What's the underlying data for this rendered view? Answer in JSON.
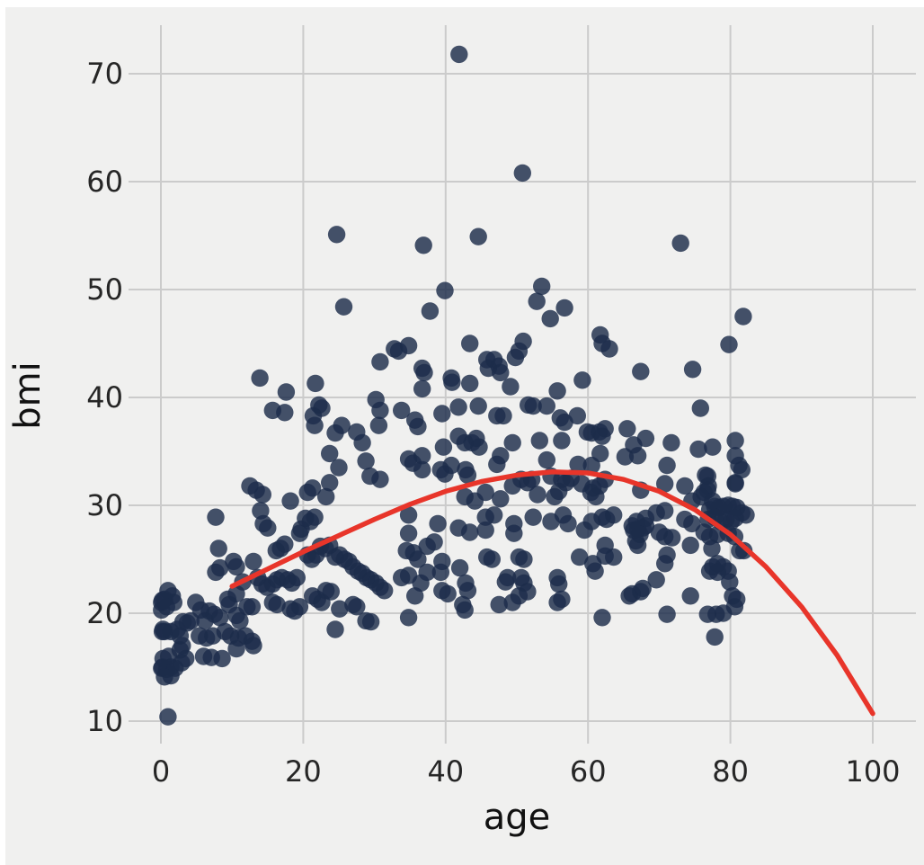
{
  "figure": {
    "background": "#ffffff",
    "panel_background": "#f0f0ef"
  },
  "chart_data": {
    "type": "scatter",
    "title": "",
    "xlabel": "age",
    "ylabel": "bmi",
    "x_ticks": [
      0,
      20,
      40,
      60,
      80,
      100
    ],
    "y_ticks": [
      10,
      20,
      30,
      40,
      50,
      60,
      70
    ],
    "xlim": [
      -4.5,
      106
    ],
    "ylim": [
      7.9,
      74.5
    ],
    "grid": true,
    "legend": "none",
    "grid_color": "#cbcbcb",
    "tick_color": "#262626",
    "label_color": "#111111",
    "marker": {
      "color": "#1c2c4a",
      "opacity": 0.82,
      "radius": 9.7
    },
    "trend": {
      "type": "polynomial-fit-line",
      "color": "#e8352a",
      "width": 5.5,
      "points": [
        [
          10,
          22.5
        ],
        [
          15,
          24.1
        ],
        [
          20,
          25.7
        ],
        [
          25,
          27.2
        ],
        [
          30,
          28.7
        ],
        [
          35,
          30.1
        ],
        [
          40,
          31.3
        ],
        [
          45,
          32.2
        ],
        [
          50,
          32.8
        ],
        [
          55,
          33.1
        ],
        [
          60,
          33.0
        ],
        [
          65,
          32.4
        ],
        [
          70,
          31.3
        ],
        [
          75,
          29.6
        ],
        [
          80,
          27.3
        ],
        [
          85,
          24.3
        ],
        [
          90,
          20.6
        ],
        [
          95,
          16.1
        ],
        [
          100,
          10.7
        ]
      ]
    },
    "points": [
      [
        1.0,
        22.1
      ],
      [
        1.6,
        21.6
      ],
      [
        0.5,
        21.3
      ],
      [
        0.1,
        21.0
      ],
      [
        1.8,
        21.0
      ],
      [
        0.8,
        20.6
      ],
      [
        0.1,
        20.3
      ],
      [
        0.2,
        21.2
      ],
      [
        0.3,
        18.5
      ],
      [
        0.2,
        18.3
      ],
      [
        0.5,
        18.3
      ],
      [
        1.4,
        18.3
      ],
      [
        2.3,
        18.5
      ],
      [
        2.7,
        17.9
      ],
      [
        0.2,
        15.0
      ],
      [
        0.1,
        14.9
      ],
      [
        0.8,
        14.8
      ],
      [
        1.4,
        15.0
      ],
      [
        2.0,
        14.9
      ],
      [
        0.5,
        14.1
      ],
      [
        1.4,
        14.2
      ],
      [
        0.3,
        15.8
      ],
      [
        1.1,
        16.0
      ],
      [
        2.9,
        15.4
      ],
      [
        3.5,
        15.8
      ],
      [
        2.7,
        16.6
      ],
      [
        3.0,
        17.0
      ],
      [
        3.7,
        19.1
      ],
      [
        4.2,
        19.3
      ],
      [
        3.1,
        19.2
      ],
      [
        1.0,
        10.4
      ],
      [
        7.7,
        28.9
      ],
      [
        8.1,
        26.0
      ],
      [
        8.3,
        24.2
      ],
      [
        7.7,
        23.8
      ],
      [
        4.9,
        21.0
      ],
      [
        5.6,
        20.3
      ],
      [
        6.8,
        20.2
      ],
      [
        7.5,
        19.9
      ],
      [
        8.3,
        19.6
      ],
      [
        6.2,
        19.3
      ],
      [
        5.4,
        17.9
      ],
      [
        6.4,
        17.7
      ],
      [
        7.3,
        17.9
      ],
      [
        6.0,
        16.0
      ],
      [
        7.1,
        15.9
      ],
      [
        8.6,
        15.8
      ],
      [
        9.0,
        18.3
      ],
      [
        9.8,
        17.9
      ],
      [
        10.9,
        17.7
      ],
      [
        10.6,
        16.7
      ],
      [
        11.1,
        19.3
      ],
      [
        9.4,
        21.3
      ],
      [
        9.6,
        20.8
      ],
      [
        10.6,
        19.8
      ],
      [
        12.1,
        20.6
      ],
      [
        12.8,
        20.6
      ],
      [
        11.9,
        17.9
      ],
      [
        12.8,
        17.4
      ],
      [
        13.0,
        17.0
      ],
      [
        10.6,
        21.8
      ],
      [
        11.5,
        22.9
      ],
      [
        10.2,
        24.8
      ],
      [
        10.6,
        24.3
      ],
      [
        14.0,
        29.5
      ],
      [
        14.4,
        28.3
      ],
      [
        15.0,
        27.9
      ],
      [
        16.2,
        25.8
      ],
      [
        16.8,
        26.0
      ],
      [
        17.4,
        26.4
      ],
      [
        13.0,
        24.8
      ],
      [
        13.6,
        23.3
      ],
      [
        14.2,
        22.7
      ],
      [
        14.9,
        22.4
      ],
      [
        15.7,
        22.7
      ],
      [
        16.3,
        23.1
      ],
      [
        17.0,
        23.3
      ],
      [
        17.8,
        23.1
      ],
      [
        18.4,
        22.8
      ],
      [
        19.1,
        23.3
      ],
      [
        19.5,
        27.4
      ],
      [
        19.7,
        27.8
      ],
      [
        20.3,
        28.8
      ],
      [
        21.0,
        28.5
      ],
      [
        21.6,
        28.9
      ],
      [
        20.6,
        25.4
      ],
      [
        21.2,
        25.0
      ],
      [
        21.8,
        25.4
      ],
      [
        22.4,
        26.2
      ],
      [
        23.1,
        26.0
      ],
      [
        23.7,
        26.3
      ],
      [
        24.5,
        25.2
      ],
      [
        25.1,
        25.4
      ],
      [
        25.8,
        25.0
      ],
      [
        26.4,
        24.8
      ],
      [
        27.0,
        24.3
      ],
      [
        27.7,
        23.9
      ],
      [
        28.3,
        23.7
      ],
      [
        28.9,
        23.3
      ],
      [
        29.5,
        23.1
      ],
      [
        30.2,
        22.8
      ],
      [
        30.8,
        22.4
      ],
      [
        31.4,
        22.1
      ],
      [
        21.3,
        21.6
      ],
      [
        22.0,
        21.3
      ],
      [
        22.6,
        21.0
      ],
      [
        23.2,
        22.1
      ],
      [
        23.9,
        22.0
      ],
      [
        24.5,
        18.5
      ],
      [
        25.1,
        20.4
      ],
      [
        27.0,
        20.8
      ],
      [
        27.5,
        20.6
      ],
      [
        28.8,
        19.3
      ],
      [
        29.5,
        19.2
      ],
      [
        18.2,
        20.4
      ],
      [
        18.8,
        20.2
      ],
      [
        19.5,
        20.6
      ],
      [
        16.3,
        20.8
      ],
      [
        15.7,
        21.0
      ],
      [
        34.8,
        29.1
      ],
      [
        34.8,
        27.4
      ],
      [
        38.9,
        28.3
      ],
      [
        38.4,
        26.6
      ],
      [
        41.8,
        27.9
      ],
      [
        43.4,
        27.5
      ],
      [
        45.6,
        27.7
      ],
      [
        45.6,
        28.9
      ],
      [
        46.8,
        29.1
      ],
      [
        49.6,
        28.3
      ],
      [
        49.6,
        27.4
      ],
      [
        52.3,
        28.9
      ],
      [
        54.8,
        28.5
      ],
      [
        56.5,
        29.1
      ],
      [
        57.2,
        28.3
      ],
      [
        59.5,
        27.7
      ],
      [
        60.5,
        28.5
      ],
      [
        62.0,
        28.9
      ],
      [
        62.6,
        28.7
      ],
      [
        63.6,
        29.1
      ],
      [
        67.0,
        27.8
      ],
      [
        68.1,
        28.1
      ],
      [
        39.5,
        24.8
      ],
      [
        39.3,
        23.8
      ],
      [
        42.0,
        24.2
      ],
      [
        42.8,
        22.8
      ],
      [
        43.1,
        22.1
      ],
      [
        45.8,
        25.2
      ],
      [
        46.5,
        25.0
      ],
      [
        50.3,
        25.2
      ],
      [
        51.0,
        25.0
      ],
      [
        50.6,
        23.3
      ],
      [
        51.0,
        22.8
      ],
      [
        48.7,
        23.3
      ],
      [
        48.4,
        22.9
      ],
      [
        51.5,
        22.0
      ],
      [
        55.7,
        23.3
      ],
      [
        55.9,
        22.7
      ],
      [
        56.3,
        21.3
      ],
      [
        36.5,
        22.8
      ],
      [
        35.7,
        21.6
      ],
      [
        37.4,
        26.2
      ],
      [
        58.8,
        25.2
      ],
      [
        60.7,
        24.6
      ],
      [
        61.0,
        23.9
      ],
      [
        62.4,
        26.3
      ],
      [
        62.4,
        25.3
      ],
      [
        63.6,
        25.2
      ],
      [
        67.4,
        22.0
      ],
      [
        66.2,
        21.8
      ],
      [
        34.8,
        23.5
      ],
      [
        33.8,
        23.3
      ],
      [
        35.5,
        25.6
      ],
      [
        34.5,
        25.8
      ],
      [
        36.1,
        25.0
      ],
      [
        37.4,
        23.8
      ],
      [
        42.4,
        20.8
      ],
      [
        47.5,
        20.8
      ],
      [
        49.4,
        21.0
      ],
      [
        50.3,
        21.6
      ],
      [
        55.7,
        21.0
      ],
      [
        39.5,
        22.1
      ],
      [
        40.3,
        21.8
      ],
      [
        34.8,
        19.6
      ],
      [
        62.0,
        19.6
      ],
      [
        42.7,
        20.3
      ],
      [
        76.8,
        32.7
      ],
      [
        81.6,
        33.3
      ],
      [
        76.8,
        31.4
      ],
      [
        80.7,
        32.1
      ],
      [
        75.9,
        30.8
      ],
      [
        77.8,
        29.9
      ],
      [
        77.1,
        29.6
      ],
      [
        78.4,
        29.8
      ],
      [
        79.0,
        29.9
      ],
      [
        79.7,
        30.0
      ],
      [
        80.3,
        29.9
      ],
      [
        80.9,
        29.8
      ],
      [
        81.6,
        29.3
      ],
      [
        82.2,
        29.1
      ],
      [
        77.8,
        28.9
      ],
      [
        76.9,
        28.7
      ],
      [
        78.7,
        28.5
      ],
      [
        79.4,
        28.7
      ],
      [
        80.1,
        28.5
      ],
      [
        80.7,
        28.8
      ],
      [
        76.3,
        27.5
      ],
      [
        77.1,
        27.1
      ],
      [
        78.2,
        27.3
      ],
      [
        79.7,
        27.4
      ],
      [
        80.6,
        27.1
      ],
      [
        81.3,
        25.8
      ],
      [
        81.9,
        25.8
      ],
      [
        77.4,
        26.0
      ],
      [
        78.2,
        24.6
      ],
      [
        79.0,
        24.3
      ],
      [
        77.5,
        24.3
      ],
      [
        77.1,
        23.9
      ],
      [
        78.2,
        23.8
      ],
      [
        79.7,
        23.9
      ],
      [
        79.9,
        22.9
      ],
      [
        80.3,
        21.6
      ],
      [
        80.9,
        21.3
      ],
      [
        80.6,
        20.6
      ],
      [
        76.8,
        19.9
      ],
      [
        78.0,
        19.9
      ],
      [
        79.0,
        20.0
      ],
      [
        77.8,
        17.8
      ],
      [
        66.2,
        28.1
      ],
      [
        66.8,
        28.5
      ],
      [
        66.4,
        27.7
      ],
      [
        67.7,
        27.9
      ],
      [
        67.3,
        27.3
      ],
      [
        66.7,
        26.7
      ],
      [
        67.0,
        26.3
      ],
      [
        68.1,
        28.8
      ],
      [
        69.6,
        29.3
      ],
      [
        70.8,
        29.5
      ],
      [
        70.0,
        27.5
      ],
      [
        70.8,
        27.1
      ],
      [
        71.8,
        27.0
      ],
      [
        71.1,
        25.4
      ],
      [
        70.8,
        24.6
      ],
      [
        73.6,
        28.7
      ],
      [
        74.6,
        28.3
      ],
      [
        74.4,
        26.3
      ],
      [
        69.6,
        23.1
      ],
      [
        65.8,
        21.6
      ],
      [
        67.7,
        22.3
      ],
      [
        74.4,
        21.6
      ],
      [
        71.1,
        19.9
      ],
      [
        25.7,
        48.4
      ],
      [
        30.8,
        43.3
      ],
      [
        13.9,
        41.8
      ],
      [
        17.6,
        40.5
      ],
      [
        21.7,
        41.3
      ],
      [
        15.7,
        38.8
      ],
      [
        17.4,
        38.6
      ],
      [
        22.6,
        39.0
      ],
      [
        22.2,
        39.3
      ],
      [
        21.4,
        38.3
      ],
      [
        21.6,
        37.4
      ],
      [
        24.5,
        36.7
      ],
      [
        25.4,
        37.4
      ],
      [
        27.5,
        36.8
      ],
      [
        28.3,
        35.8
      ],
      [
        30.2,
        39.8
      ],
      [
        30.8,
        38.8
      ],
      [
        30.6,
        37.4
      ],
      [
        23.7,
        34.8
      ],
      [
        25.0,
        33.5
      ],
      [
        28.8,
        34.1
      ],
      [
        29.4,
        32.7
      ],
      [
        30.8,
        32.4
      ],
      [
        23.7,
        32.1
      ],
      [
        12.5,
        31.8
      ],
      [
        13.4,
        31.4
      ],
      [
        14.3,
        31.0
      ],
      [
        20.6,
        31.2
      ],
      [
        21.3,
        31.6
      ],
      [
        23.2,
        30.8
      ],
      [
        18.2,
        30.4
      ],
      [
        32.8,
        44.5
      ],
      [
        33.4,
        44.3
      ],
      [
        39.9,
        49.9
      ],
      [
        37.8,
        48.0
      ],
      [
        53.5,
        50.3
      ],
      [
        52.8,
        48.9
      ],
      [
        56.7,
        48.3
      ],
      [
        54.7,
        47.3
      ],
      [
        43.4,
        45.0
      ],
      [
        61.7,
        45.8
      ],
      [
        62.0,
        45.0
      ],
      [
        63.0,
        44.5
      ],
      [
        50.9,
        45.2
      ],
      [
        50.3,
        44.3
      ],
      [
        45.8,
        43.5
      ],
      [
        46.8,
        43.5
      ],
      [
        47.5,
        42.9
      ],
      [
        47.7,
        42.3
      ],
      [
        46.0,
        42.7
      ],
      [
        49.8,
        43.7
      ],
      [
        36.7,
        42.7
      ],
      [
        37.0,
        42.3
      ],
      [
        36.7,
        40.8
      ],
      [
        40.8,
        41.8
      ],
      [
        40.9,
        41.4
      ],
      [
        43.4,
        41.3
      ],
      [
        43.7,
        35.8
      ],
      [
        49.1,
        41.0
      ],
      [
        55.7,
        40.6
      ],
      [
        59.2,
        41.6
      ],
      [
        34.8,
        44.8
      ],
      [
        67.4,
        42.4
      ],
      [
        33.8,
        38.8
      ],
      [
        35.7,
        37.9
      ],
      [
        36.1,
        37.3
      ],
      [
        39.5,
        38.5
      ],
      [
        41.8,
        39.1
      ],
      [
        44.6,
        39.2
      ],
      [
        51.6,
        39.3
      ],
      [
        52.3,
        39.2
      ],
      [
        54.2,
        39.2
      ],
      [
        47.2,
        38.3
      ],
      [
        48.1,
        38.3
      ],
      [
        56.1,
        38.1
      ],
      [
        56.7,
        37.7
      ],
      [
        58.5,
        38.3
      ],
      [
        59.9,
        36.8
      ],
      [
        60.5,
        36.7
      ],
      [
        61.6,
        36.8
      ],
      [
        62.0,
        36.4
      ],
      [
        62.4,
        37.1
      ],
      [
        65.5,
        37.1
      ],
      [
        66.4,
        35.6
      ],
      [
        41.8,
        36.4
      ],
      [
        42.7,
        35.8
      ],
      [
        44.3,
        36.2
      ],
      [
        44.7,
        35.4
      ],
      [
        39.7,
        35.4
      ],
      [
        49.4,
        35.8
      ],
      [
        53.2,
        36.0
      ],
      [
        56.3,
        36.0
      ],
      [
        47.7,
        34.6
      ],
      [
        54.2,
        34.2
      ],
      [
        58.6,
        33.8
      ],
      [
        60.5,
        33.7
      ],
      [
        61.7,
        34.8
      ],
      [
        34.8,
        34.3
      ],
      [
        35.4,
        33.9
      ],
      [
        36.7,
        33.3
      ],
      [
        39.3,
        33.3
      ],
      [
        39.9,
        32.9
      ],
      [
        40.8,
        33.7
      ],
      [
        42.8,
        33.3
      ],
      [
        43.1,
        32.8
      ],
      [
        47.2,
        33.8
      ],
      [
        50.6,
        32.4
      ],
      [
        51.5,
        32.1
      ],
      [
        52.1,
        32.4
      ],
      [
        54.8,
        32.7
      ],
      [
        56.3,
        32.4
      ],
      [
        56.9,
        32.1
      ],
      [
        57.6,
        32.5
      ],
      [
        59.1,
        32.0
      ],
      [
        60.7,
        31.6
      ],
      [
        61.6,
        31.8
      ],
      [
        62.4,
        32.4
      ],
      [
        65.2,
        34.5
      ],
      [
        67.0,
        34.6
      ],
      [
        36.7,
        34.6
      ],
      [
        49.4,
        31.8
      ],
      [
        45.6,
        31.2
      ],
      [
        42.7,
        30.8
      ],
      [
        44.1,
        30.4
      ],
      [
        47.7,
        30.6
      ],
      [
        52.9,
        31.0
      ],
      [
        55.3,
        30.8
      ],
      [
        55.9,
        31.3
      ],
      [
        60.4,
        31.2
      ],
      [
        61.1,
        30.8
      ],
      [
        67.4,
        31.4
      ],
      [
        81.8,
        47.5
      ],
      [
        79.8,
        44.9
      ],
      [
        74.7,
        42.6
      ],
      [
        75.8,
        39.0
      ],
      [
        68.1,
        36.2
      ],
      [
        71.7,
        35.8
      ],
      [
        75.5,
        35.2
      ],
      [
        77.5,
        35.4
      ],
      [
        80.7,
        36.0
      ],
      [
        80.7,
        34.6
      ],
      [
        81.2,
        33.7
      ],
      [
        71.1,
        33.7
      ],
      [
        76.5,
        32.8
      ],
      [
        76.9,
        31.8
      ],
      [
        70.8,
        32.0
      ],
      [
        73.6,
        31.8
      ],
      [
        76.3,
        31.2
      ],
      [
        80.7,
        32.0
      ],
      [
        74.6,
        30.4
      ],
      [
        77.5,
        30.4
      ],
      [
        41.9,
        71.8
      ],
      [
        50.8,
        60.8
      ],
      [
        24.7,
        55.1
      ],
      [
        36.9,
        54.1
      ],
      [
        44.6,
        54.9
      ],
      [
        73.0,
        54.3
      ]
    ]
  }
}
